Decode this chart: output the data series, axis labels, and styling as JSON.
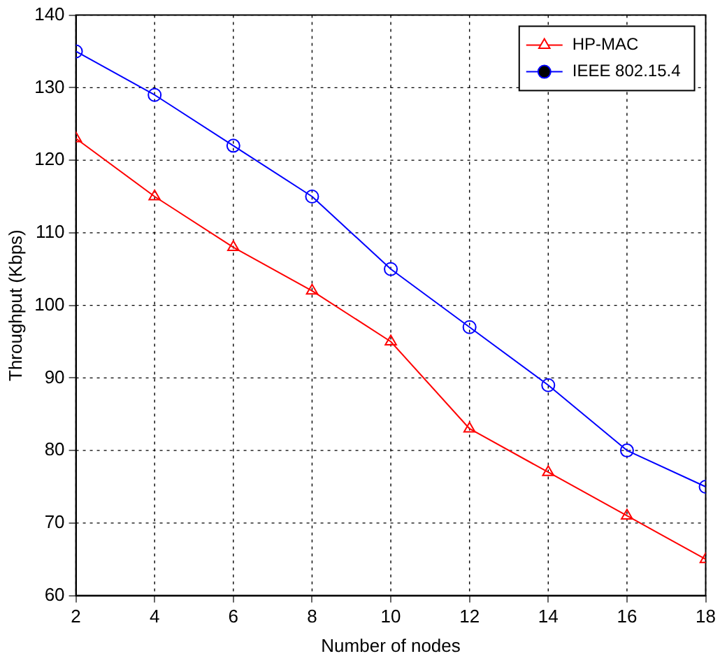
{
  "chart_data": {
    "type": "line",
    "xlabel": "Number of nodes",
    "ylabel": "Throughput (Kbps)",
    "x": [
      2,
      4,
      6,
      8,
      10,
      12,
      14,
      16,
      18
    ],
    "series": [
      {
        "name": "HP-MAC",
        "color": "#ff0000",
        "marker": "triangle",
        "values": [
          123,
          115,
          108,
          102,
          95,
          83,
          77,
          71,
          65
        ]
      },
      {
        "name": "IEEE 802.15.4",
        "color": "#0000ff",
        "marker": "circle",
        "values": [
          135,
          129,
          122,
          115,
          105,
          97,
          89,
          80,
          75
        ]
      }
    ],
    "xlim": [
      2,
      18
    ],
    "xticks": [
      2,
      4,
      6,
      8,
      10,
      12,
      14,
      16,
      18
    ],
    "ylim": [
      60,
      140
    ],
    "yticks": [
      60,
      70,
      80,
      90,
      100,
      110,
      120,
      130,
      140
    ],
    "grid": true,
    "legend": "top right",
    "line_style": "solid"
  }
}
